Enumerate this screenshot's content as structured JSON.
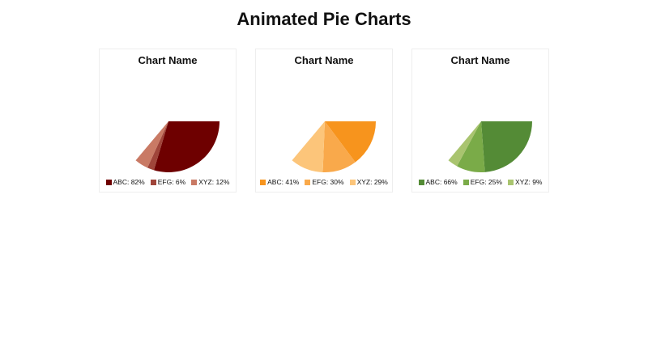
{
  "page": {
    "title": "Animated Pie Charts"
  },
  "charts": [
    {
      "title": "Chart Name",
      "legend": [
        "ABC: 82%",
        "EFG: 6%",
        "XYZ: 12%"
      ],
      "colors": [
        "#6e0000",
        "#a0453a",
        "#c97a65"
      ]
    },
    {
      "title": "Chart Name",
      "legend": [
        "ABC: 41%",
        "EFG: 30%",
        "XYZ: 29%"
      ],
      "colors": [
        "#f7941d",
        "#f9a94b",
        "#fcc57a"
      ]
    },
    {
      "title": "Chart Name",
      "legend": [
        "ABC: 66%",
        "EFG: 25%",
        "XYZ: 9%"
      ],
      "colors": [
        "#548b36",
        "#7aab48",
        "#a9c46f"
      ]
    }
  ],
  "chart_data": [
    {
      "type": "pie",
      "title": "Chart Name",
      "categories": [
        "ABC",
        "EFG",
        "XYZ"
      ],
      "values": [
        82,
        6,
        12
      ],
      "colors": [
        "#6e0000",
        "#a0453a",
        "#c97a65"
      ],
      "legend_position": "bottom",
      "animation_sweep_deg": 130,
      "start_angle_deg": 0
    },
    {
      "type": "pie",
      "title": "Chart Name",
      "categories": [
        "ABC",
        "EFG",
        "XYZ"
      ],
      "values": [
        41,
        30,
        29
      ],
      "colors": [
        "#f7941d",
        "#f9a94b",
        "#fcc57a"
      ],
      "legend_position": "bottom",
      "animation_sweep_deg": 130,
      "start_angle_deg": 0
    },
    {
      "type": "pie",
      "title": "Chart Name",
      "categories": [
        "ABC",
        "EFG",
        "XYZ"
      ],
      "values": [
        66,
        25,
        9
      ],
      "colors": [
        "#548b36",
        "#7aab48",
        "#a9c46f"
      ],
      "legend_position": "bottom",
      "animation_sweep_deg": 130,
      "start_angle_deg": 0
    }
  ]
}
